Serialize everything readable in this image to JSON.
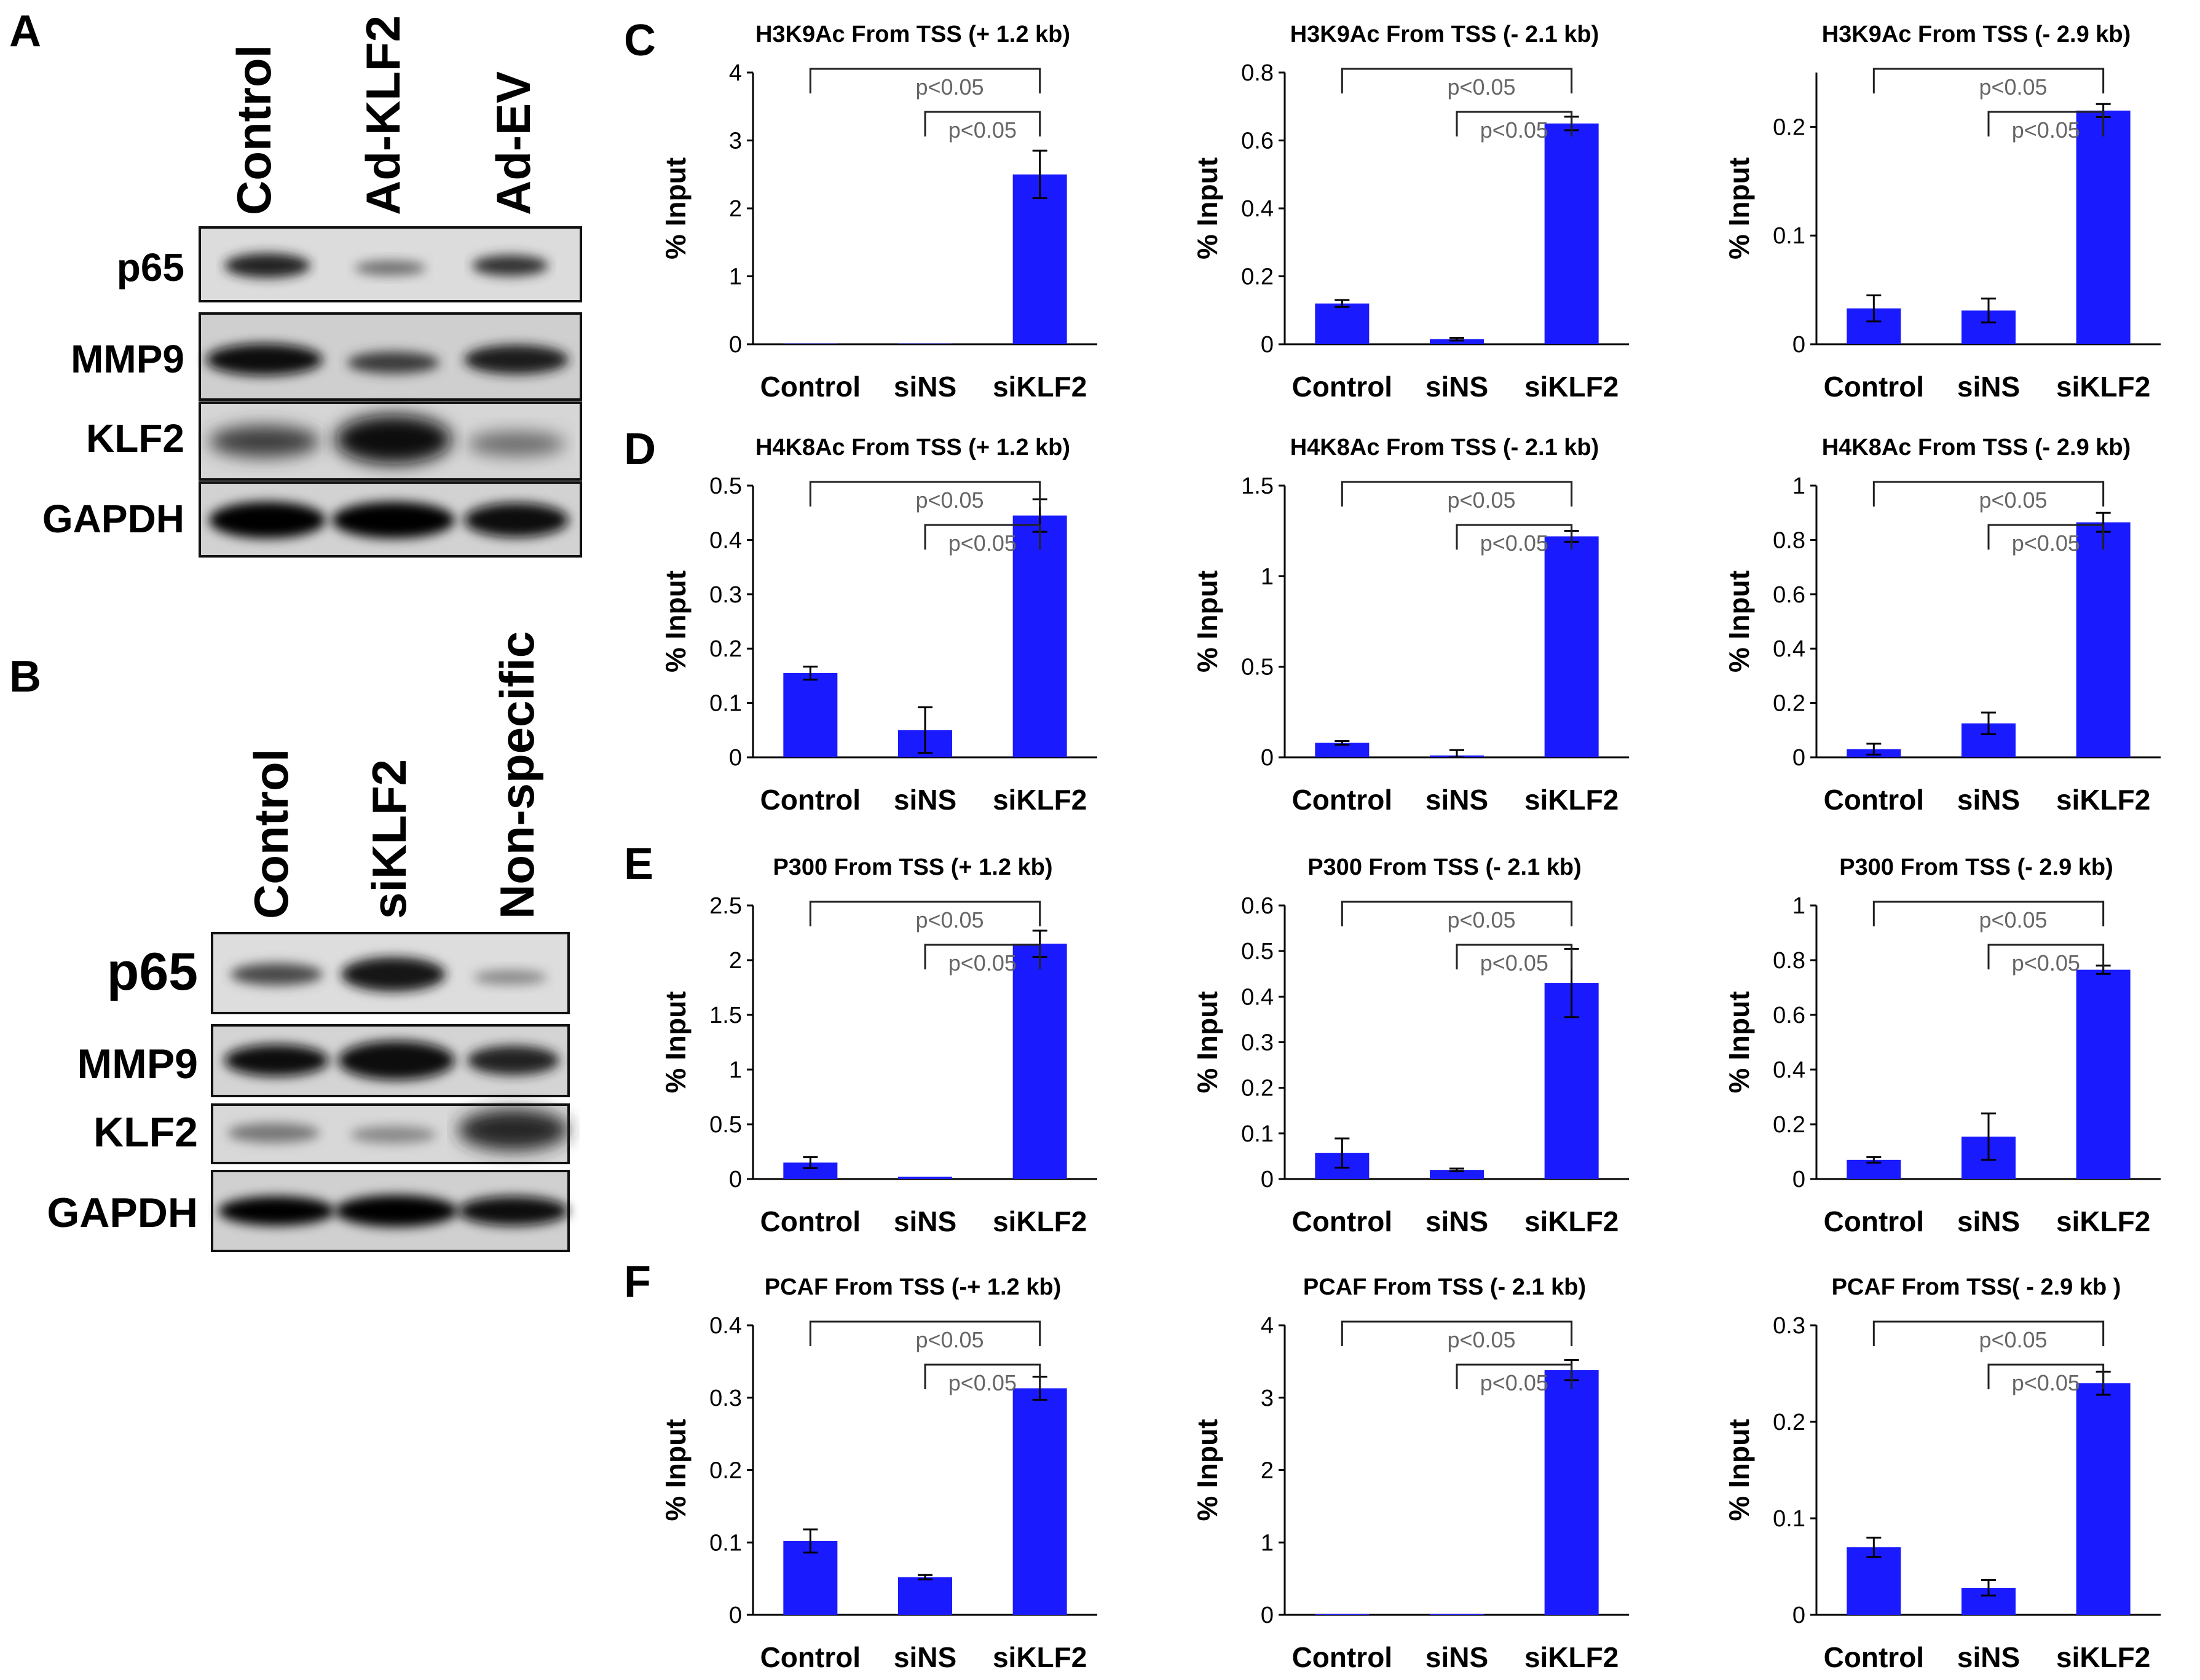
{
  "figure": {
    "panel_a": {
      "letter": "A",
      "lanes": [
        "Control",
        "Ad-KLF2",
        "Ad-EV"
      ],
      "rows": [
        "p65",
        "MMP9",
        "KLF2",
        "GAPDH"
      ]
    },
    "panel_b": {
      "letter": "B",
      "lanes": [
        "Control",
        "siKLF2",
        "Non-specific"
      ],
      "rows": [
        "p65",
        "MMP9",
        "KLF2",
        "GAPDH"
      ]
    },
    "row_letters": [
      "C",
      "D",
      "E",
      "F"
    ]
  },
  "chart_data": [
    {
      "type": "bar",
      "row": "C",
      "title": "H3K9Ac From TSS (+ 1.2 kb)",
      "categories": [
        "Control",
        "siNS",
        "siKLF2"
      ],
      "values": [
        0.01,
        0.01,
        2.5
      ],
      "errors": [
        0.0,
        0.0,
        0.35
      ],
      "ylabel": "% Input",
      "ylim": [
        0,
        4
      ],
      "yticks": [
        0,
        1,
        2,
        3,
        4
      ],
      "tick_labels": [
        "0",
        "1",
        "2",
        "3",
        "4"
      ],
      "significance": [
        {
          "from": "Control",
          "to": "siKLF2",
          "label": "p<0.05"
        },
        {
          "from": "siNS",
          "to": "siKLF2",
          "label": "p<0.05"
        }
      ],
      "bar_color": "#1a1aff"
    },
    {
      "type": "bar",
      "row": "C",
      "title": "H3K9Ac From TSS (- 2.1 kb)",
      "categories": [
        "Control",
        "siNS",
        "siKLF2"
      ],
      "values": [
        0.12,
        0.015,
        0.65
      ],
      "errors": [
        0.01,
        0.004,
        0.02
      ],
      "ylabel": "% Input",
      "ylim": [
        0,
        0.8
      ],
      "yticks": [
        0,
        0.2,
        0.4,
        0.6,
        0.8
      ],
      "tick_labels": [
        "0",
        "0.2",
        "0.4",
        "0.6",
        "0.8"
      ],
      "significance": [
        {
          "from": "Control",
          "to": "siKLF2",
          "label": "p<0.05"
        },
        {
          "from": "siNS",
          "to": "siKLF2",
          "label": "p<0.05"
        }
      ],
      "bar_color": "#1a1aff"
    },
    {
      "type": "bar",
      "row": "C",
      "title": "H3K9Ac From TSS (- 2.9 kb)",
      "categories": [
        "Control",
        "siNS",
        "siKLF2"
      ],
      "values": [
        0.033,
        0.031,
        0.215
      ],
      "errors": [
        0.012,
        0.011,
        0.006
      ],
      "ylabel": "% Input",
      "ylim": [
        0,
        0.25
      ],
      "yticks": [
        0,
        0.1,
        0.2
      ],
      "tick_labels": [
        "0",
        "0.1",
        "0.2"
      ],
      "significance": [
        {
          "from": "Control",
          "to": "siKLF2",
          "label": "p<0.05"
        },
        {
          "from": "siNS",
          "to": "siKLF2",
          "label": "p<0.05"
        }
      ],
      "bar_color": "#1a1aff"
    },
    {
      "type": "bar",
      "row": "D",
      "title": "H4K8Ac From TSS (+ 1.2 kb)",
      "categories": [
        "Control",
        "siNS",
        "siKLF2"
      ],
      "values": [
        0.155,
        0.05,
        0.445
      ],
      "errors": [
        0.012,
        0.042,
        0.03
      ],
      "ylabel": "% Input",
      "ylim": [
        0,
        0.5
      ],
      "yticks": [
        0,
        0.1,
        0.2,
        0.3,
        0.4,
        0.5
      ],
      "tick_labels": [
        "0",
        "0.1",
        "0.2",
        "0.3",
        "0.4",
        "0.5"
      ],
      "significance": [
        {
          "from": "Control",
          "to": "siKLF2",
          "label": "p<0.05"
        },
        {
          "from": "siNS",
          "to": "siKLF2",
          "label": "p<0.05"
        }
      ],
      "bar_color": "#1a1aff"
    },
    {
      "type": "bar",
      "row": "D",
      "title": "H4K8Ac From TSS (- 2.1 kb)",
      "categories": [
        "Control",
        "siNS",
        "siKLF2"
      ],
      "values": [
        0.08,
        0.01,
        1.22
      ],
      "errors": [
        0.01,
        0.03,
        0.03
      ],
      "ylabel": "% Input",
      "ylim": [
        0,
        1.5
      ],
      "yticks": [
        0,
        0.5,
        1,
        1.5
      ],
      "tick_labels": [
        "0",
        "0.5",
        "1",
        "1.5"
      ],
      "significance": [
        {
          "from": "Control",
          "to": "siKLF2",
          "label": "p<0.05"
        },
        {
          "from": "siNS",
          "to": "siKLF2",
          "label": "p<0.05"
        }
      ],
      "bar_color": "#1a1aff"
    },
    {
      "type": "bar",
      "row": "D",
      "title": "H4K8Ac From TSS (- 2.9 kb)",
      "categories": [
        "Control",
        "siNS",
        "siKLF2"
      ],
      "values": [
        0.03,
        0.125,
        0.865
      ],
      "errors": [
        0.02,
        0.04,
        0.035
      ],
      "ylabel": "% Input",
      "ylim": [
        0,
        1
      ],
      "yticks": [
        0,
        0.2,
        0.4,
        0.6,
        0.8,
        1
      ],
      "tick_labels": [
        "0",
        "0.2",
        "0.4",
        "0.6",
        "0.8",
        "1"
      ],
      "significance": [
        {
          "from": "Control",
          "to": "siKLF2",
          "label": "p<0.05"
        },
        {
          "from": "siNS",
          "to": "siKLF2",
          "label": "p<0.05"
        }
      ],
      "bar_color": "#1a1aff"
    },
    {
      "type": "bar",
      "row": "E",
      "title": "P300 From TSS (+ 1.2 kb)",
      "categories": [
        "Control",
        "siNS",
        "siKLF2"
      ],
      "values": [
        0.15,
        0.02,
        2.15
      ],
      "errors": [
        0.05,
        0.0,
        0.12
      ],
      "ylabel": "% Input",
      "ylim": [
        0,
        2.5
      ],
      "yticks": [
        0,
        0.5,
        1,
        1.5,
        2,
        2.5
      ],
      "tick_labels": [
        "0",
        "0.5",
        "1",
        "1.5",
        "2",
        "2.5"
      ],
      "significance": [
        {
          "from": "Control",
          "to": "siKLF2",
          "label": "p<0.05"
        },
        {
          "from": "siNS",
          "to": "siKLF2",
          "label": "p<0.05"
        }
      ],
      "bar_color": "#1a1aff"
    },
    {
      "type": "bar",
      "row": "E",
      "title": "P300 From TSS (- 2.1 kb)",
      "categories": [
        "Control",
        "siNS",
        "siKLF2"
      ],
      "values": [
        0.057,
        0.02,
        0.43
      ],
      "errors": [
        0.032,
        0.003,
        0.075
      ],
      "ylabel": "% Input",
      "ylim": [
        0,
        0.6
      ],
      "yticks": [
        0,
        0.1,
        0.2,
        0.3,
        0.4,
        0.5,
        0.6
      ],
      "tick_labels": [
        "0",
        "0.1",
        "0.2",
        "0.3",
        "0.4",
        "0.5",
        "0.6"
      ],
      "significance": [
        {
          "from": "Control",
          "to": "siKLF2",
          "label": "p<0.05"
        },
        {
          "from": "siNS",
          "to": "siKLF2",
          "label": "p<0.05"
        }
      ],
      "bar_color": "#1a1aff"
    },
    {
      "type": "bar",
      "row": "E",
      "title": "P300 From TSS (- 2.9 kb)",
      "categories": [
        "Control",
        "siNS",
        "siKLF2"
      ],
      "values": [
        0.07,
        0.155,
        0.765
      ],
      "errors": [
        0.01,
        0.085,
        0.015
      ],
      "ylabel": "% Input",
      "ylim": [
        0,
        1
      ],
      "yticks": [
        0,
        0.2,
        0.4,
        0.6,
        0.8,
        1
      ],
      "tick_labels": [
        "0",
        "0.2",
        "0.4",
        "0.6",
        "0.8",
        "1"
      ],
      "significance": [
        {
          "from": "Control",
          "to": "siKLF2",
          "label": "p<0.05"
        },
        {
          "from": "siNS",
          "to": "siKLF2",
          "label": "p<0.05"
        }
      ],
      "bar_color": "#1a1aff"
    },
    {
      "type": "bar",
      "row": "F",
      "title": "PCAF From TSS (-+ 1.2 kb)",
      "categories": [
        "Control",
        "siNS",
        "siKLF2"
      ],
      "values": [
        0.102,
        0.052,
        0.313
      ],
      "errors": [
        0.016,
        0.003,
        0.016
      ],
      "ylabel": "% Input",
      "ylim": [
        0,
        0.4
      ],
      "yticks": [
        0,
        0.1,
        0.2,
        0.3,
        0.4
      ],
      "tick_labels": [
        "0",
        "0.1",
        "0.2",
        "0.3",
        "0.4"
      ],
      "significance": [
        {
          "from": "Control",
          "to": "siKLF2",
          "label": "p<0.05"
        },
        {
          "from": "siNS",
          "to": "siKLF2",
          "label": "p<0.05"
        }
      ],
      "bar_color": "#1a1aff"
    },
    {
      "type": "bar",
      "row": "F",
      "title": "PCAF From TSS (- 2.1 kb)",
      "categories": [
        "Control",
        "siNS",
        "siKLF2"
      ],
      "values": [
        0.01,
        0.01,
        3.38
      ],
      "errors": [
        0.0,
        0.0,
        0.14
      ],
      "ylabel": "% Input",
      "ylim": [
        0,
        4
      ],
      "yticks": [
        0,
        1,
        2,
        3,
        4
      ],
      "tick_labels": [
        "0",
        "1",
        "2",
        "3",
        "4"
      ],
      "significance": [
        {
          "from": "Control",
          "to": "siKLF2",
          "label": "p<0.05"
        },
        {
          "from": "siNS",
          "to": "siKLF2",
          "label": "p<0.05"
        }
      ],
      "bar_color": "#1a1aff"
    },
    {
      "type": "bar",
      "row": "F",
      "title": "PCAF From TSS( - 2.9 kb )",
      "categories": [
        "Control",
        "siNS",
        "siKLF2"
      ],
      "values": [
        0.07,
        0.028,
        0.24
      ],
      "errors": [
        0.01,
        0.008,
        0.012
      ],
      "ylabel": "% Input",
      "ylim": [
        0,
        0.3
      ],
      "yticks": [
        0,
        0.1,
        0.2,
        0.3
      ],
      "tick_labels": [
        "0",
        "0.1",
        "0.2",
        "0.3"
      ],
      "significance": [
        {
          "from": "Control",
          "to": "siKLF2",
          "label": "p<0.05"
        },
        {
          "from": "siNS",
          "to": "siKLF2",
          "label": "p<0.05"
        }
      ],
      "bar_color": "#1a1aff"
    }
  ]
}
